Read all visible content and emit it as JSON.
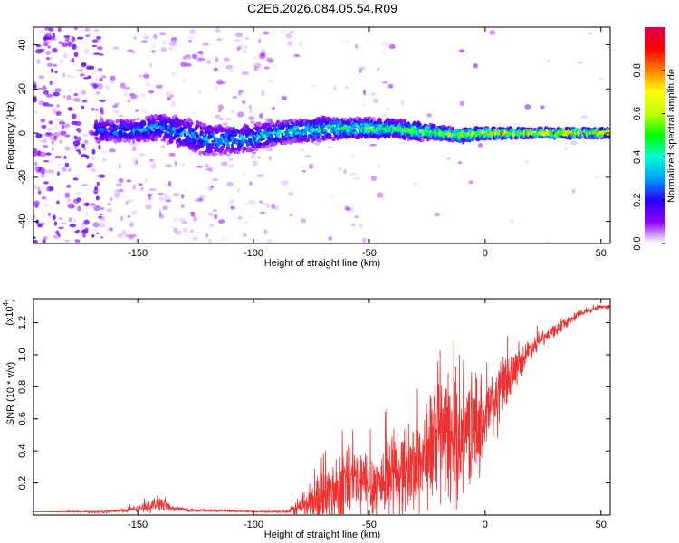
{
  "title": "C2E6.2026.084.05.54.R09",
  "chart_data": [
    {
      "type": "heatmap",
      "name": "spectrogram",
      "xlabel": "Height of straight line (km)",
      "ylabel": "Frequency (Hz)",
      "xlim": [
        -195,
        54
      ],
      "ylim": [
        -50,
        48
      ],
      "x_ticks": [
        "-150",
        "-100",
        "-50",
        "0",
        "50"
      ],
      "x_tick_values": [
        -150,
        -100,
        -50,
        0,
        50
      ],
      "y_ticks": [
        "40",
        "20",
        "0",
        "-20",
        "-40"
      ],
      "y_tick_values": [
        40,
        20,
        0,
        -20,
        -40
      ],
      "colorbar": {
        "label": "Normalized spectral amplitude",
        "range": [
          0,
          1
        ],
        "ticks": [
          "0.0",
          "0.2",
          "0.4",
          "0.6",
          "0.8"
        ],
        "tick_values": [
          0.0,
          0.2,
          0.4,
          0.6,
          0.8
        ],
        "colors": [
          "#ffffff",
          "#8a00ff",
          "#2a00ff",
          "#00a0ff",
          "#00ffd0",
          "#00ff00",
          "#c0ff00",
          "#ffff00",
          "#ff8000",
          "#ff0000",
          "#d80050"
        ]
      },
      "ridge": {
        "x": [
          -165,
          -150,
          -140,
          -130,
          -120,
          -110,
          -100,
          -90,
          -80,
          -70,
          -60,
          -50,
          -40,
          -30,
          -20,
          -10,
          0,
          10,
          20,
          30,
          40,
          50,
          54
        ],
        "center": [
          1,
          1,
          3,
          0,
          -3,
          -3,
          -2,
          0,
          1,
          2,
          2,
          2,
          2,
          1,
          0,
          -1,
          0,
          0,
          0,
          0,
          0,
          0,
          0
        ],
        "amplitude": [
          0.3,
          0.35,
          0.35,
          0.35,
          0.35,
          0.38,
          0.4,
          0.42,
          0.45,
          0.48,
          0.5,
          0.52,
          0.55,
          0.6,
          0.65,
          0.72,
          0.8,
          0.82,
          0.85,
          0.88,
          0.88,
          0.85,
          0.8
        ],
        "halfwidth": [
          5,
          5,
          6,
          7,
          7,
          6,
          6,
          5,
          5,
          5,
          4.5,
          4.5,
          4,
          4,
          3,
          3,
          2.5,
          2.2,
          2,
          2,
          2,
          2,
          2
        ]
      }
    },
    {
      "type": "line",
      "name": "snr",
      "xlabel": "Height of straight line (km)",
      "ylabel": "SNR (10 * v/v)",
      "scale_label": "(x10",
      "scale_exp": "4",
      "scale_close": ")",
      "xlim": [
        -195,
        54
      ],
      "ylim": [
        0,
        1.35
      ],
      "x_ticks": [
        "-150",
        "-100",
        "-50",
        "0",
        "50"
      ],
      "x_tick_values": [
        -150,
        -100,
        -50,
        0,
        50
      ],
      "y_ticks": [
        "0.2",
        "0.4",
        "0.6",
        "0.8",
        "1.0",
        "1.2"
      ],
      "y_tick_values": [
        0.2,
        0.4,
        0.6,
        0.8,
        1.0,
        1.2
      ],
      "line_color": "#ee3030",
      "envelope": {
        "x": [
          -195,
          -165,
          -155,
          -145,
          -140,
          -135,
          -125,
          -110,
          -95,
          -85,
          -80,
          -75,
          -70,
          -65,
          -60,
          -55,
          -50,
          -45,
          -40,
          -35,
          -30,
          -25,
          -20,
          -15,
          -10,
          -5,
          0,
          5,
          10,
          15,
          20,
          25,
          30,
          35,
          40,
          45,
          50,
          54
        ],
        "base": [
          0.02,
          0.02,
          0.03,
          0.05,
          0.08,
          0.04,
          0.03,
          0.025,
          0.02,
          0.02,
          0.05,
          0.08,
          0.1,
          0.15,
          0.2,
          0.2,
          0.18,
          0.2,
          0.25,
          0.28,
          0.3,
          0.4,
          0.5,
          0.45,
          0.5,
          0.55,
          0.6,
          0.72,
          0.85,
          0.95,
          1.05,
          1.1,
          1.15,
          1.2,
          1.25,
          1.28,
          1.3,
          1.3
        ],
        "spread": [
          0.0,
          0.01,
          0.02,
          0.04,
          0.07,
          0.02,
          0.015,
          0.01,
          0.005,
          0.01,
          0.1,
          0.18,
          0.25,
          0.3,
          0.35,
          0.3,
          0.3,
          0.3,
          0.35,
          0.35,
          0.4,
          0.45,
          0.5,
          0.55,
          0.45,
          0.4,
          0.35,
          0.3,
          0.2,
          0.12,
          0.08,
          0.06,
          0.05,
          0.04,
          0.03,
          0.025,
          0.02,
          0.02
        ]
      }
    }
  ]
}
